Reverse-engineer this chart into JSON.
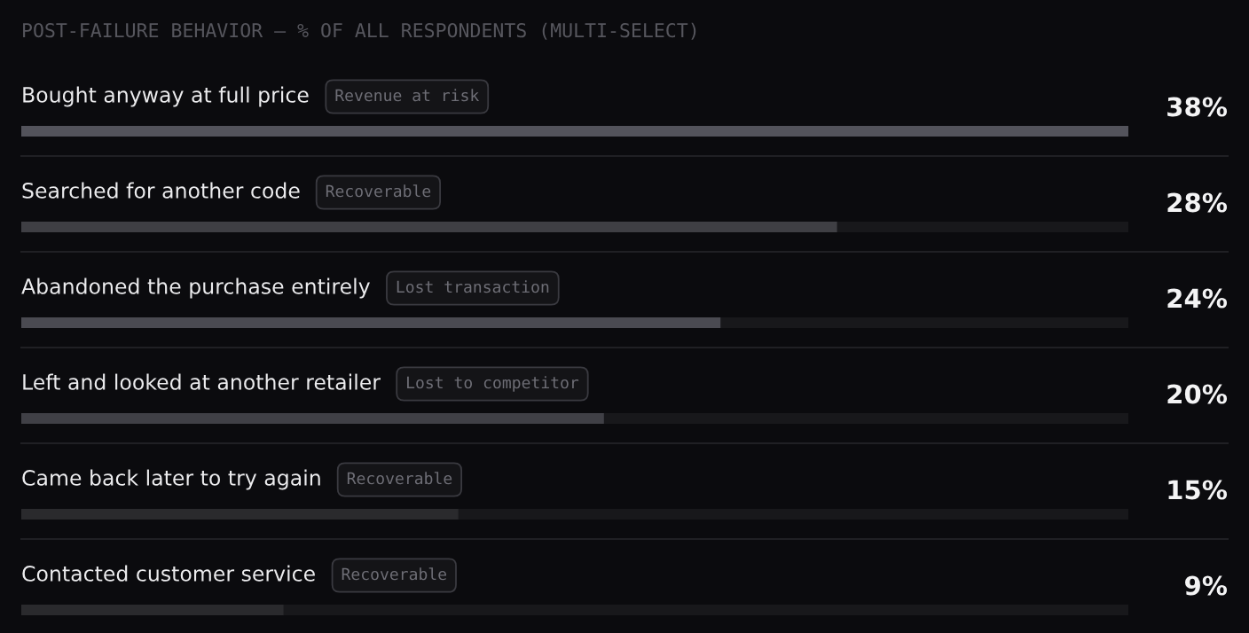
{
  "chart_data": {
    "type": "bar",
    "orientation": "horizontal",
    "title": "POST-FAILURE BEHAVIOR — % OF ALL RESPONDENTS (MULTI-SELECT)",
    "categories": [
      "Bought anyway at full price",
      "Searched for another code",
      "Abandoned the purchase entirely",
      "Left and looked at another retailer",
      "Came back later to try again",
      "Contacted customer service"
    ],
    "values": [
      38,
      28,
      24,
      20,
      15,
      9
    ],
    "colors": [
      "#53535b",
      "#3f3f44",
      "#4a4a51",
      "#404046",
      "#2a2a2d",
      "#2a2a2d"
    ],
    "xlim": [
      0,
      38
    ],
    "value_labels": [
      "38%",
      "28%",
      "24%",
      "20%",
      "15%",
      "9%"
    ],
    "annotations": [
      "Revenue at risk",
      "Recoverable",
      "Lost transaction",
      "Lost to competitor",
      "Recoverable",
      "Recoverable"
    ],
    "tick_labels": "y"
  }
}
